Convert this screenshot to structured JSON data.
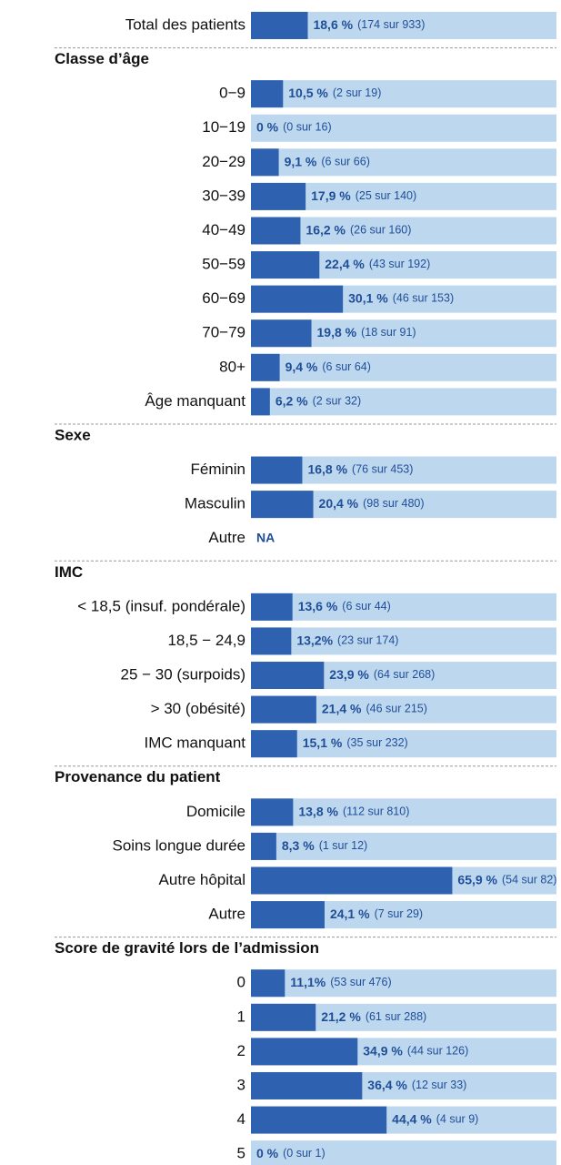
{
  "chart_data": {
    "type": "bar",
    "xlim": [
      0,
      100
    ],
    "track_color": "#bdd7ee",
    "color": "#2e62b0",
    "groups": [
      {
        "categories": [
          "Total des patients"
        ],
        "values": [
          18.6
        ],
        "value_labels": [
          "18,6 %"
        ],
        "counts": [
          "(174 sur 933)"
        ]
      },
      {
        "title": "Classe d’âge",
        "categories": [
          "0−9",
          "10−19",
          "20−29",
          "30−39",
          "40−49",
          "50−59",
          "60−69",
          "70−79",
          "80+",
          "Âge manquant"
        ],
        "values": [
          10.5,
          0,
          9.1,
          17.9,
          16.2,
          22.4,
          30.1,
          19.8,
          9.4,
          6.2
        ],
        "value_labels": [
          "10,5 %",
          "0 %",
          "9,1 %",
          "17,9 %",
          "16,2 %",
          "22,4 %",
          "30,1 %",
          "19,8 %",
          "9,4 %",
          "6,2 %"
        ],
        "counts": [
          "(2 sur 19)",
          "(0 sur 16)",
          "(6 sur 66)",
          "(25 sur 140)",
          "(26 sur 160)",
          "(43 sur 192)",
          "(46 sur 153)",
          "(18 sur 91)",
          "(6 sur 64)",
          "(2 sur 32)"
        ]
      },
      {
        "title": "Sexe",
        "categories": [
          "Féminin",
          "Masculin",
          "Autre"
        ],
        "values": [
          16.8,
          20.4,
          null
        ],
        "value_labels": [
          "16,8 %",
          "20,4 %",
          "NA"
        ],
        "counts": [
          "(76 sur 453)",
          "(98 sur 480)",
          null
        ]
      },
      {
        "title": "IMC",
        "categories": [
          "< 18,5 (insuf. pondérale)",
          "18,5 − 24,9",
          "25 − 30 (surpoids)",
          "> 30 (obésité)",
          "IMC manquant"
        ],
        "values": [
          13.6,
          13.2,
          23.9,
          21.4,
          15.1
        ],
        "value_labels": [
          "13,6 %",
          "13,2%",
          "23,9 %",
          "21,4 %",
          "15,1 %"
        ],
        "counts": [
          "(6 sur 44)",
          "(23 sur 174)",
          "(64 sur 268)",
          "(46 sur 215)",
          "(35 sur 232)"
        ]
      },
      {
        "title": "Provenance du patient",
        "categories": [
          "Domicile",
          "Soins longue durée",
          "Autre hôpital",
          "Autre"
        ],
        "values": [
          13.8,
          8.3,
          65.9,
          24.1
        ],
        "value_labels": [
          "13,8 %",
          "8,3 %",
          "65,9 %",
          "24,1 %"
        ],
        "counts": [
          "(112 sur 810)",
          "(1 sur 12)",
          "(54 sur 82)",
          "(7 sur 29)"
        ]
      },
      {
        "title": "Score de gravité lors de l’admission",
        "categories": [
          "0",
          "1",
          "2",
          "3",
          "4",
          "5"
        ],
        "values": [
          11.1,
          21.2,
          34.9,
          36.4,
          44.4,
          0
        ],
        "value_labels": [
          "11,1%",
          "21,2 %",
          "34,9 %",
          "36,4 %",
          "44,4 %",
          "0 %"
        ],
        "counts": [
          "(53 sur 476)",
          "(61 sur 288)",
          "(44 sur 126)",
          "(12 sur 33)",
          "(4 sur 9)",
          "(0 sur 1)"
        ]
      }
    ]
  }
}
